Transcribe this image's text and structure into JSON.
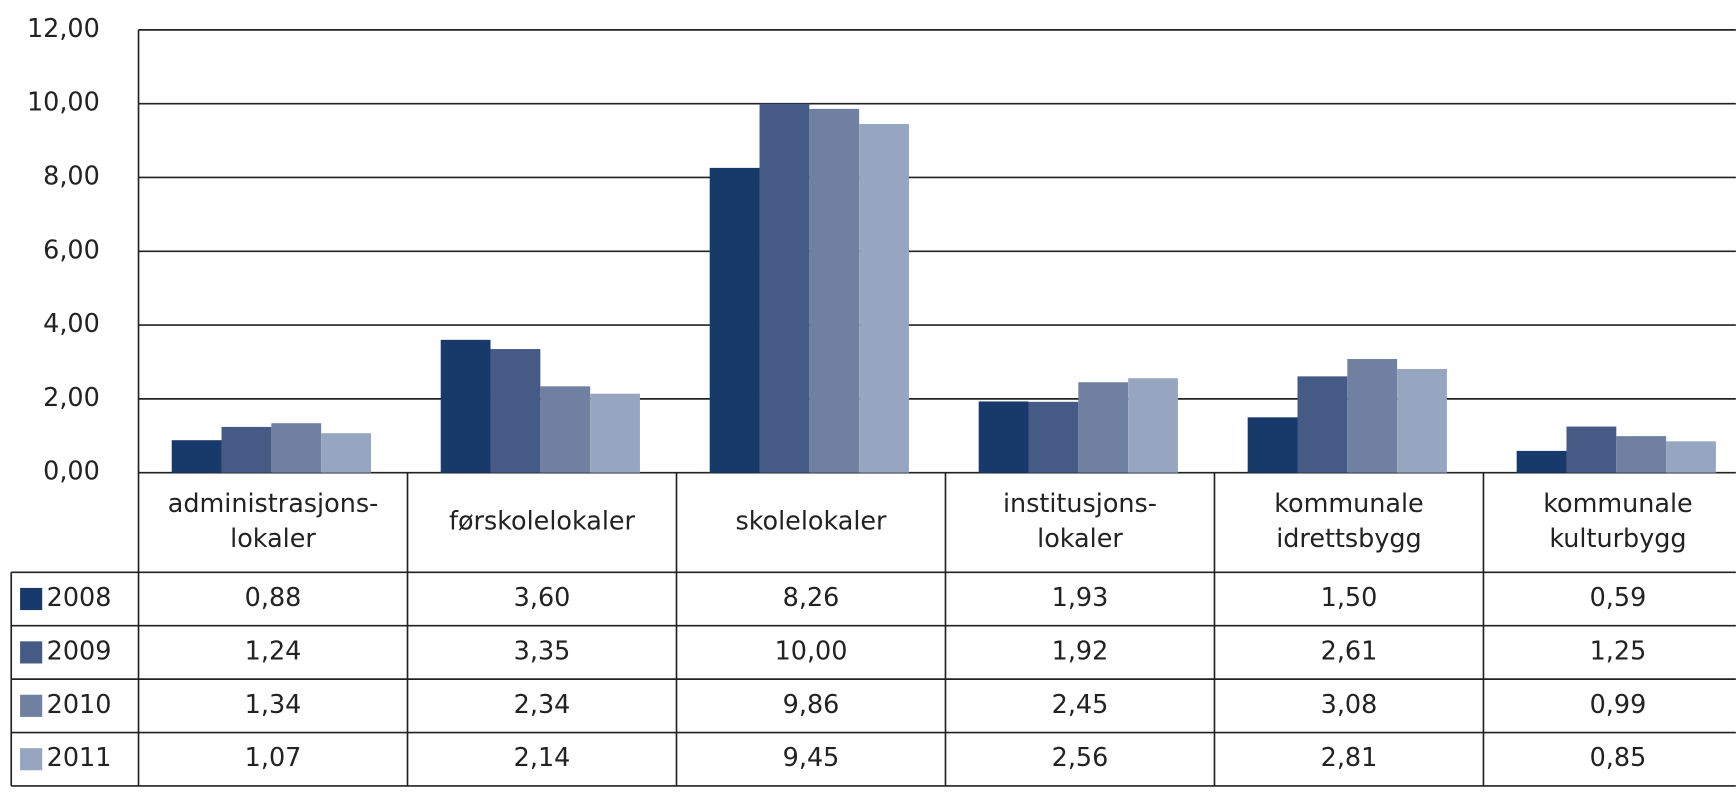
{
  "chart_data": {
    "type": "bar",
    "categories": [
      [
        "administrasjons-",
        "lokaler"
      ],
      [
        "førskolelokaler"
      ],
      [
        "skolelokaler"
      ],
      [
        "institusjons-",
        "lokaler"
      ],
      [
        "kommunale",
        "idrettsbygg"
      ],
      [
        "kommunale",
        "kulturbygg"
      ]
    ],
    "series": [
      {
        "name": "2008",
        "color": "#173a6b",
        "values": [
          0.88,
          3.6,
          8.26,
          1.93,
          1.5,
          0.59
        ],
        "value_labels": [
          "0,88",
          "3,60",
          "8,26",
          "1,93",
          "1,50",
          "0,59"
        ]
      },
      {
        "name": "2009",
        "color": "#455b86",
        "values": [
          1.24,
          3.35,
          10.0,
          1.92,
          2.61,
          1.25
        ],
        "value_labels": [
          "1,24",
          "3,35",
          "10,00",
          "1,92",
          "2,61",
          "1,25"
        ]
      },
      {
        "name": "2010",
        "color": "#6f80a0",
        "values": [
          1.34,
          2.34,
          9.86,
          2.45,
          3.08,
          0.99
        ],
        "value_labels": [
          "1,34",
          "2,34",
          "9,86",
          "2,45",
          "3,08",
          "0,99"
        ]
      },
      {
        "name": "2011",
        "color": "#97a6c0",
        "values": [
          1.07,
          2.14,
          9.45,
          2.56,
          2.81,
          0.85
        ],
        "value_labels": [
          "1,07",
          "2,14",
          "9,45",
          "2,56",
          "2,81",
          "0,85"
        ]
      }
    ],
    "ylim": [
      0,
      12
    ],
    "yticks": [
      {
        "value": 0,
        "label": "0,00"
      },
      {
        "value": 2,
        "label": "2,00"
      },
      {
        "value": 4,
        "label": "4,00"
      },
      {
        "value": 6,
        "label": "6,00"
      },
      {
        "value": 8,
        "label": "8,00"
      },
      {
        "value": 10,
        "label": "10,00"
      },
      {
        "value": 12,
        "label": "12,00"
      }
    ],
    "grid": true
  }
}
